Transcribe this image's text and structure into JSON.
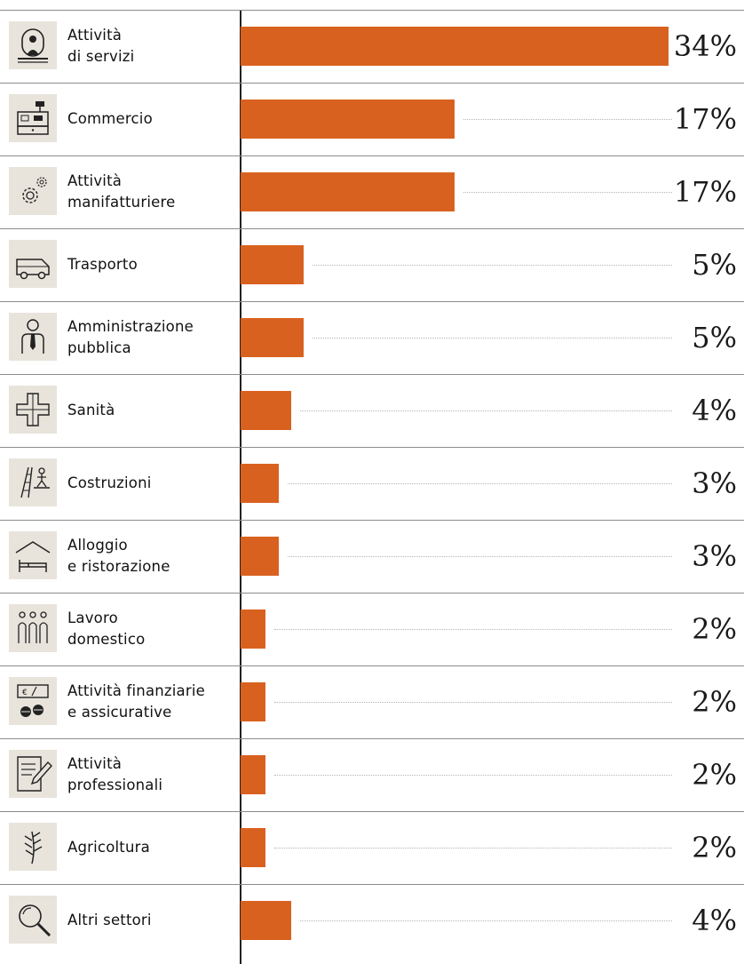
{
  "colors": {
    "bar": "#d9611f",
    "icon_bg": "#e8e4dc",
    "separator": "#8c8c8c",
    "axis": "#222222"
  },
  "chart_data": {
    "type": "bar",
    "orientation": "horizontal",
    "unit": "%",
    "categories": [
      "Attività\ndi servizi",
      "Commercio",
      "Attività\nmanifatturiere",
      "Trasporto",
      "Amministrazione\npubblica",
      "Sanità",
      "Costruzioni",
      "Alloggio\ne ristorazione",
      "Lavoro\ndomestico",
      "Attività finanziarie\ne assicurative",
      "Attività\nprofessionali",
      "Agricoltura",
      "Altri settori"
    ],
    "values": [
      34,
      17,
      17,
      5,
      5,
      4,
      3,
      3,
      2,
      2,
      2,
      2,
      4
    ],
    "value_labels": [
      "34%",
      "17%",
      "17%",
      "5%",
      "5%",
      "4%",
      "3%",
      "3%",
      "2%",
      "2%",
      "2%",
      "2%",
      "4%"
    ],
    "icons": [
      "service-counter-icon",
      "cash-register-icon",
      "gears-icon",
      "van-icon",
      "official-with-tie-icon",
      "health-cross-icon",
      "scaffold-worker-icon",
      "bed-under-roof-icon",
      "domestic-workers-icon",
      "money-coins-icon",
      "document-pen-icon",
      "wheat-icon",
      "magnifier-icon"
    ],
    "xlim": [
      0,
      34
    ],
    "grid": false,
    "legend": "none"
  }
}
